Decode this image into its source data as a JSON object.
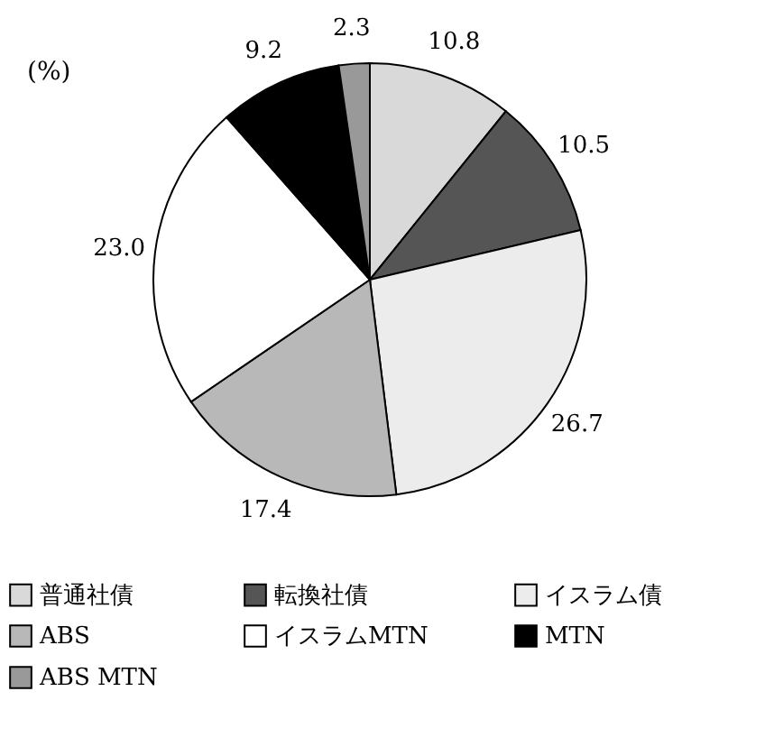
{
  "chart_data": {
    "type": "pie",
    "categories": [
      "普通社債",
      "転換社債",
      "イスラム債",
      "ABS",
      "イスラムMTN",
      "MTN",
      "ABS MTN"
    ],
    "values": [
      10.8,
      10.5,
      26.7,
      17.4,
      23.0,
      9.2,
      2.3
    ],
    "value_labels": [
      "10.8",
      "10.5",
      "26.7",
      "17.4",
      "23.0",
      "9.2",
      "2.3"
    ],
    "colors": [
      "#d9d9d9",
      "#555555",
      "#ececec",
      "#b8b8b8",
      "#ffffff",
      "#000000",
      "#999999"
    ],
    "annotations": [
      "(%)"
    ],
    "legend": "bottom"
  }
}
